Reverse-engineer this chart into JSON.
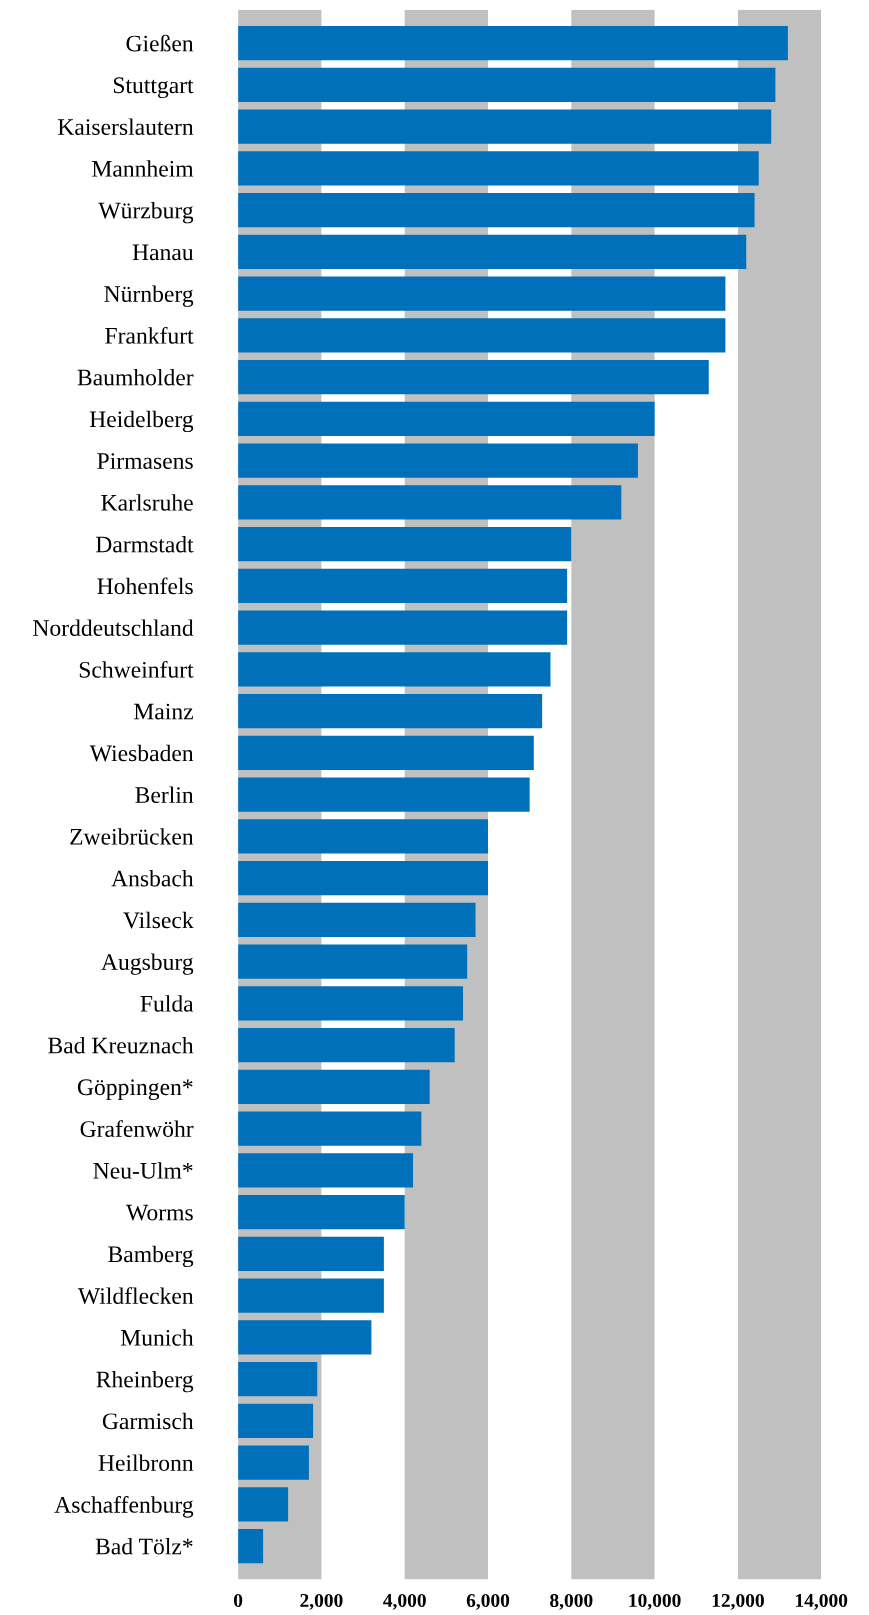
{
  "chart_data": {
    "type": "bar",
    "orientation": "horizontal",
    "categories": [
      "Gießen",
      "Stuttgart",
      "Kaiserslautern",
      "Mannheim",
      "Würzburg",
      "Hanau",
      "Nürnberg",
      "Frankfurt",
      "Baumholder",
      "Heidelberg",
      "Pirmasens",
      "Karlsruhe",
      "Darmstadt",
      "Hohenfels",
      "Norddeutschland",
      "Schweinfurt",
      "Mainz",
      "Wiesbaden",
      "Berlin",
      "Zweibrücken",
      "Ansbach",
      "Vilseck",
      "Augsburg",
      "Fulda",
      "Bad Kreuznach",
      "Göppingen*",
      "Grafenwöhr",
      "Neu-Ulm*",
      "Worms",
      "Bamberg",
      "Wildflecken",
      "Munich",
      "Rheinberg",
      "Garmisch",
      "Heilbronn",
      "Aschaffenburg",
      "Bad Tölz*"
    ],
    "values": [
      13200,
      12900,
      12800,
      12500,
      12400,
      12200,
      11700,
      11700,
      11300,
      10000,
      9600,
      9200,
      8000,
      7900,
      7900,
      7500,
      7300,
      7100,
      7000,
      6000,
      6000,
      5700,
      5500,
      5400,
      5200,
      4600,
      4400,
      4200,
      4000,
      3500,
      3500,
      3200,
      1900,
      1800,
      1700,
      1200,
      600
    ],
    "color": "#0070bb",
    "xlim": [
      0,
      14000
    ],
    "xticks": [
      0,
      {
        "value": 2000,
        "label": "2,000"
      },
      {
        "value": 4000,
        "label": "4,000"
      },
      {
        "value": 6000,
        "label": "6,000"
      },
      {
        "value": 8000,
        "label": "8,000"
      },
      {
        "value": 10000,
        "label": "10,000"
      },
      {
        "value": 12000,
        "label": "12,000"
      },
      {
        "value": 14000,
        "label": "14,000"
      }
    ],
    "bands": [
      {
        "axis": "x",
        "from": 0,
        "to": 2000,
        "color": "#c0c0c0"
      },
      {
        "axis": "x",
        "from": 4000,
        "to": 6000,
        "color": "#c0c0c0"
      },
      {
        "axis": "x",
        "from": 8000,
        "to": 10000,
        "color": "#c0c0c0"
      },
      {
        "axis": "x",
        "from": 12000,
        "to": 14000,
        "color": "#c0c0c0"
      }
    ],
    "grid": false,
    "legend": false
  }
}
